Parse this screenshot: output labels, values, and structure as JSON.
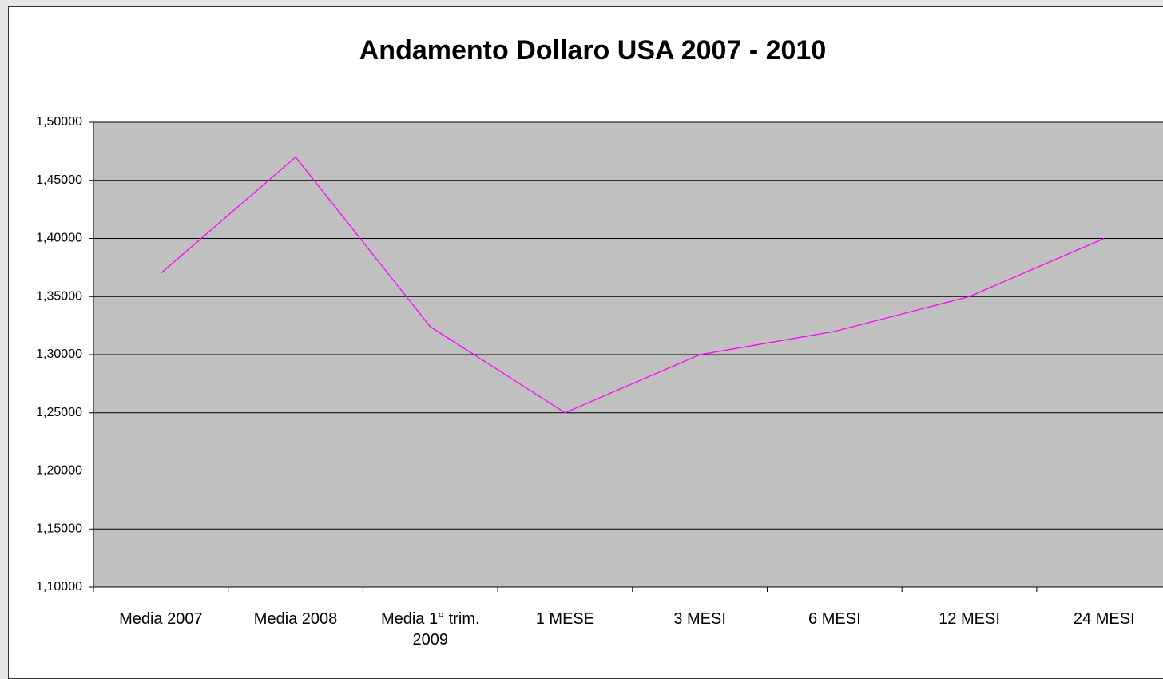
{
  "chart_data": {
    "type": "line",
    "title": "Andamento Dollaro USA 2007 - 2010",
    "categories": [
      "Media 2007",
      "Media 2008",
      "Media 1° trim. 2009",
      "1 MESE",
      "3 MESI",
      "6 MESI",
      "12 MESI",
      "24 MESI"
    ],
    "series": [
      {
        "name": null,
        "color": "#ff00ff",
        "values": [
          1.37,
          1.47,
          1.324,
          1.25,
          1.3,
          1.32,
          1.35,
          1.4
        ]
      }
    ],
    "ylim": [
      1.1,
      1.5
    ],
    "yticks": [
      {
        "value": 1.1,
        "label": "1,10000"
      },
      {
        "value": 1.15,
        "label": "1,15000"
      },
      {
        "value": 1.2,
        "label": "1,20000"
      },
      {
        "value": 1.25,
        "label": "1,25000"
      },
      {
        "value": 1.3,
        "label": "1,30000"
      },
      {
        "value": 1.35,
        "label": "1,35000"
      },
      {
        "value": 1.4,
        "label": "1,40000"
      },
      {
        "value": 1.45,
        "label": "1,45000"
      },
      {
        "value": 1.5,
        "label": "1,50000"
      }
    ],
    "grid": true
  }
}
